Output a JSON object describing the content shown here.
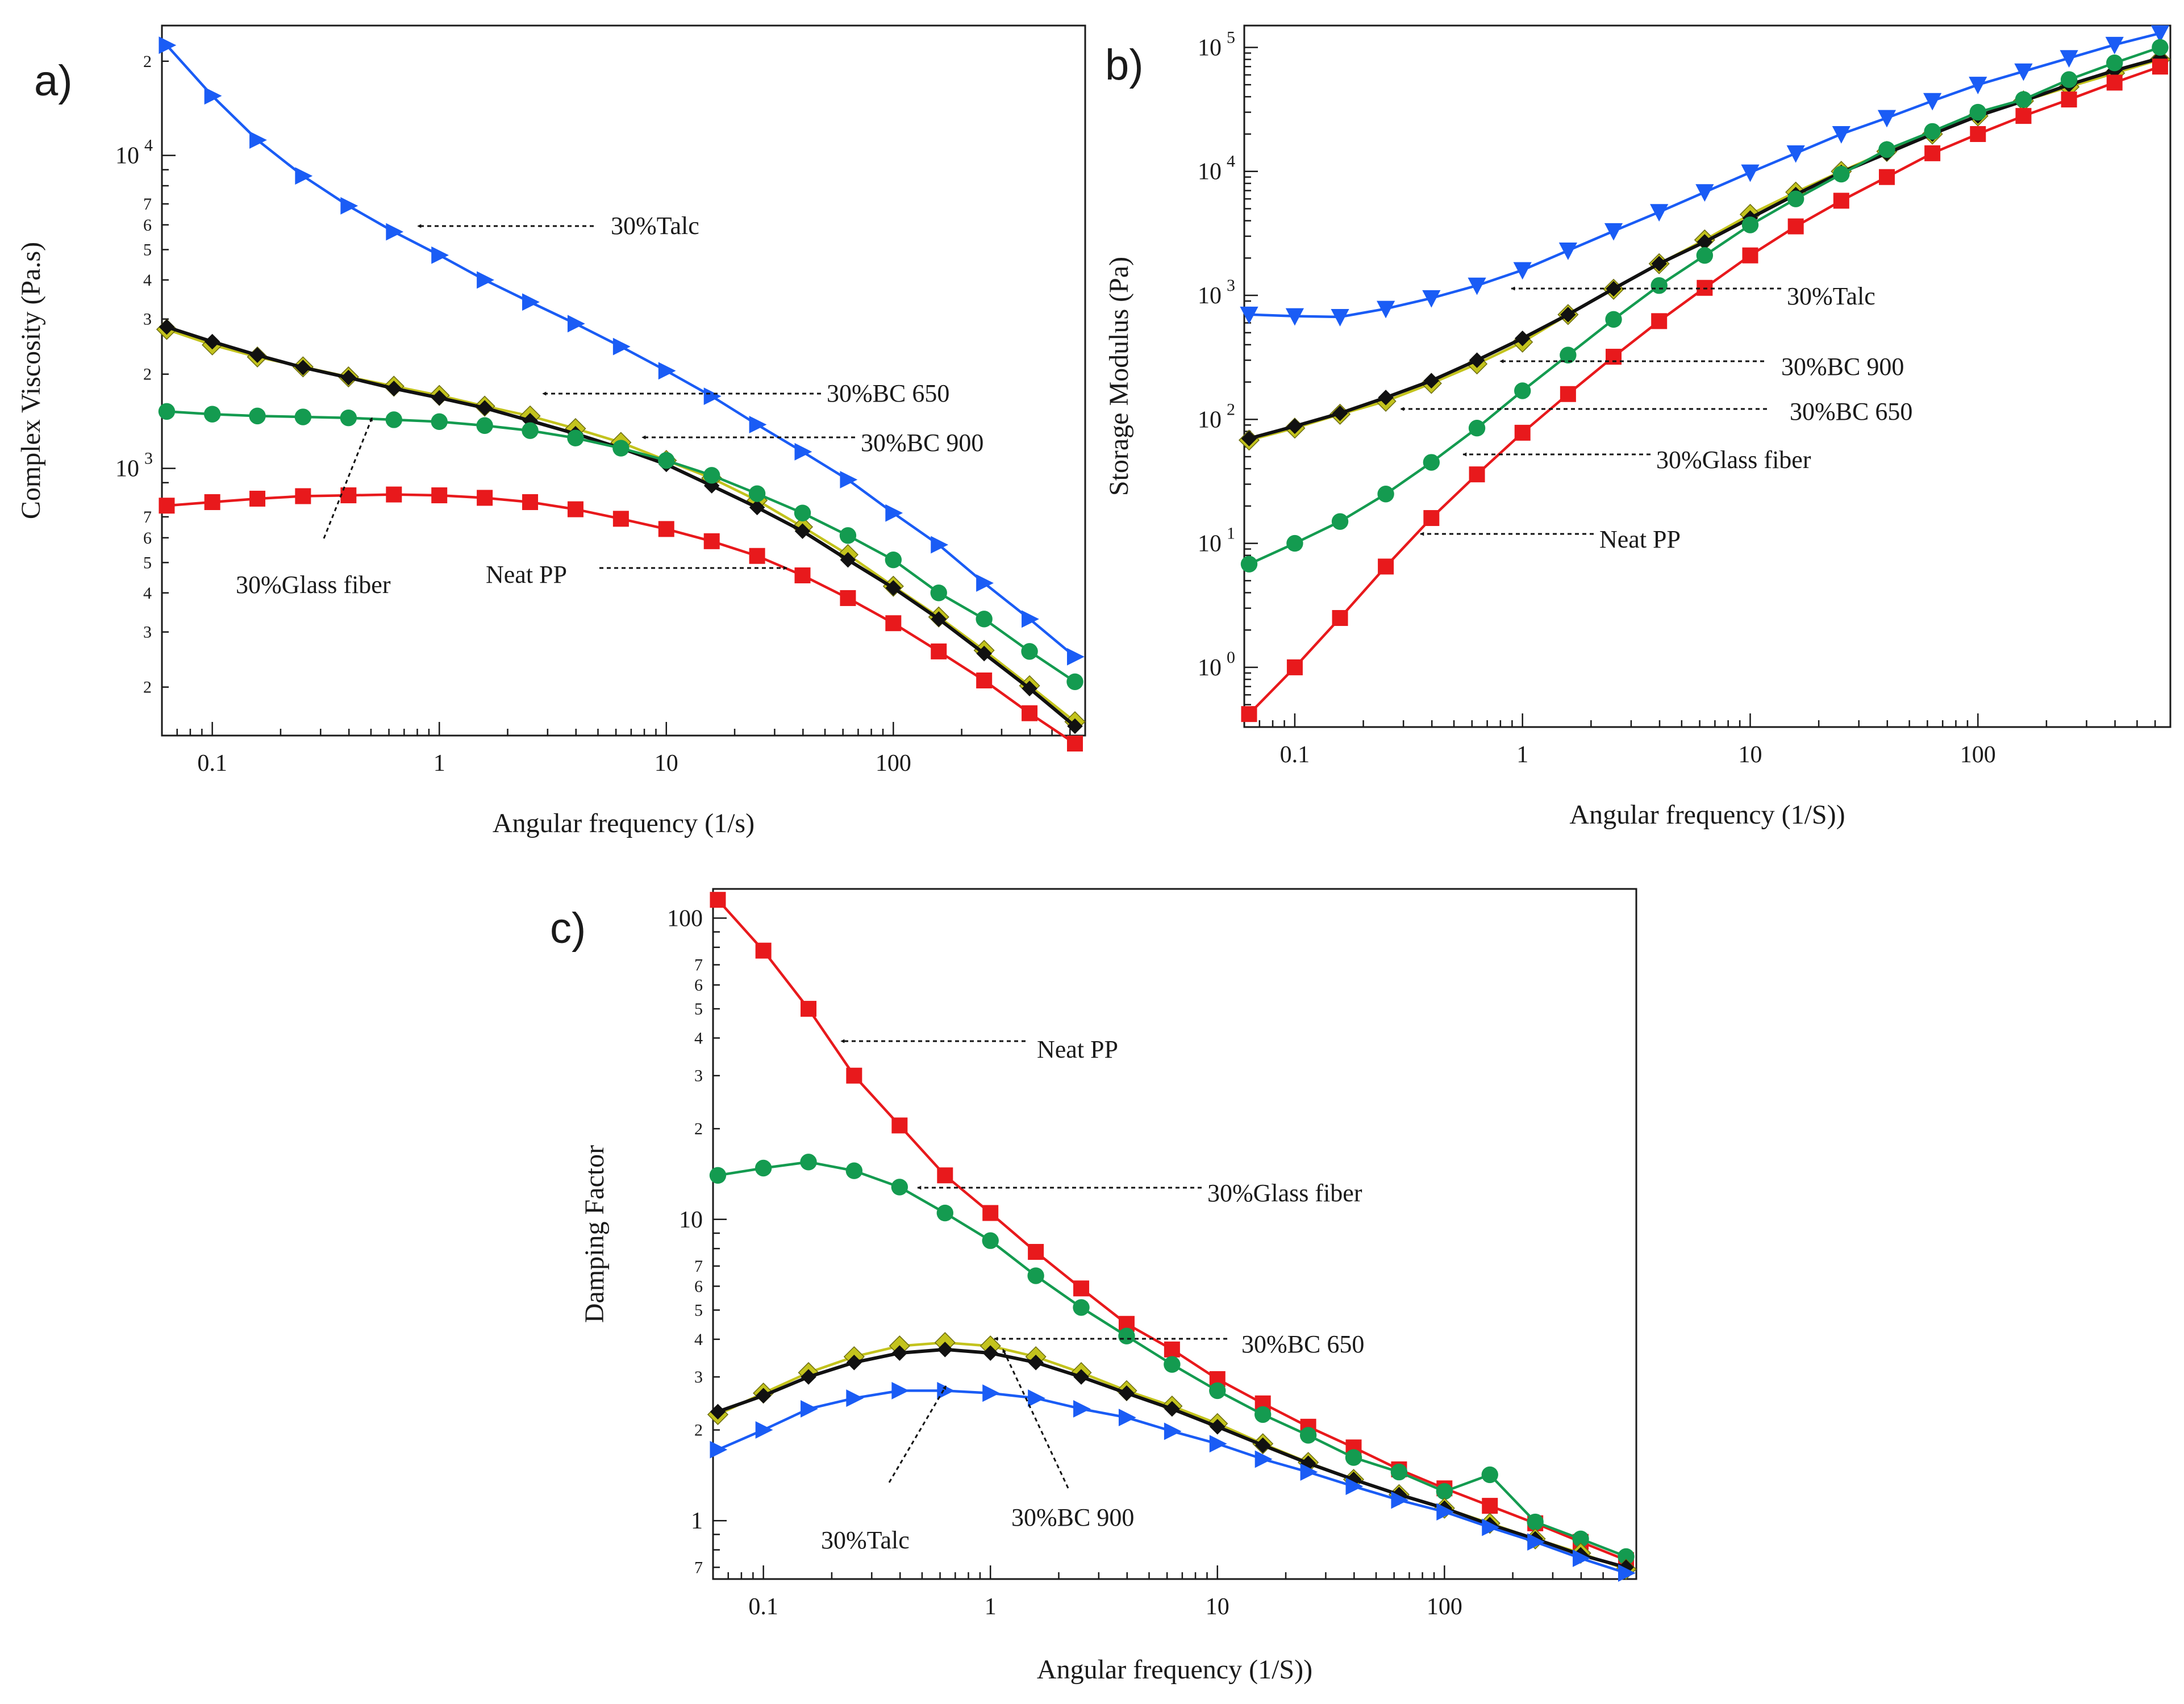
{
  "figure": {
    "panel_labels": [
      "a)",
      "b)",
      "c)"
    ],
    "colors": {
      "neat_pp": "#e8191c",
      "talc": "#1a5cf5",
      "glass": "#149b50",
      "bc650": "#c3c31d",
      "bc900": "#111111",
      "axis": "#1a1a1a"
    }
  },
  "chart_data": [
    {
      "id": "a",
      "type": "line",
      "panel_label": "a)",
      "title": "",
      "xlabel": "Angular frequency (1/s)",
      "ylabel": "Complex Viscosity (Pa.s)",
      "xscale": "log",
      "yscale": "log",
      "xlim": [
        0.06,
        700
      ],
      "ylim": [
        140,
        26000
      ],
      "xticks": [
        {
          "v": 0.1,
          "t": "0.1"
        },
        {
          "v": 1,
          "t": "1"
        },
        {
          "v": 10,
          "t": "10"
        },
        {
          "v": 100,
          "t": "100"
        }
      ],
      "yticks": [
        {
          "v": 200,
          "t": "2"
        },
        {
          "v": 300,
          "t": "3"
        },
        {
          "v": 400,
          "t": "4"
        },
        {
          "v": 500,
          "t": "5"
        },
        {
          "v": 600,
          "t": "6"
        },
        {
          "v": 700,
          "t": "7"
        },
        {
          "v": 1000,
          "t": "10",
          "sup": "3"
        },
        {
          "v": 2000,
          "t": "2"
        },
        {
          "v": 3000,
          "t": "3"
        },
        {
          "v": 4000,
          "t": "4"
        },
        {
          "v": 5000,
          "t": "5"
        },
        {
          "v": 6000,
          "t": "6"
        },
        {
          "v": 7000,
          "t": "7"
        },
        {
          "v": 10000,
          "t": "10",
          "sup": "4"
        },
        {
          "v": 20000,
          "t": "2"
        }
      ],
      "x": [
        0.063,
        0.1,
        0.158,
        0.251,
        0.398,
        0.631,
        1,
        1.585,
        2.512,
        3.981,
        6.31,
        10,
        15.85,
        25.12,
        39.81,
        63.1,
        100,
        158.5,
        251.2,
        398.1,
        631
      ],
      "series": [
        {
          "name": "30%Talc",
          "color": "#1a5cf5",
          "marker": "triangle-right",
          "values": [
            22500,
            15500,
            11200,
            8600,
            6900,
            5700,
            4800,
            4000,
            3400,
            2900,
            2450,
            2050,
            1700,
            1380,
            1130,
            920,
            720,
            570,
            430,
            330,
            250
          ]
        },
        {
          "name": "30%BC 650",
          "color": "#c3c31d",
          "marker": "diamond",
          "values": [
            2780,
            2480,
            2270,
            2110,
            1960,
            1830,
            1710,
            1580,
            1470,
            1340,
            1210,
            1060,
            930,
            790,
            650,
            530,
            420,
            335,
            262,
            202,
            155
          ]
        },
        {
          "name": "30%BC 900",
          "color": "#111111",
          "marker": "diamond",
          "values": [
            2830,
            2540,
            2300,
            2100,
            1950,
            1800,
            1680,
            1560,
            1420,
            1290,
            1160,
            1030,
            880,
            750,
            630,
            510,
            415,
            330,
            256,
            198,
            150
          ]
        },
        {
          "name": "30%Glass fiber",
          "color": "#149b50",
          "marker": "circle",
          "values": [
            1520,
            1490,
            1470,
            1460,
            1450,
            1430,
            1410,
            1370,
            1320,
            1250,
            1160,
            1060,
            950,
            830,
            720,
            610,
            510,
            400,
            330,
            260,
            208
          ]
        },
        {
          "name": "Neat PP",
          "color": "#e8191c",
          "marker": "square",
          "values": [
            760,
            780,
            800,
            815,
            820,
            825,
            820,
            805,
            780,
            740,
            690,
            640,
            585,
            525,
            455,
            385,
            320,
            260,
            210,
            165,
            132
          ]
        }
      ],
      "annotations": [
        {
          "text": "30%Talc"
        },
        {
          "text": "30%BC 650"
        },
        {
          "text": "30%BC 900"
        },
        {
          "text": "30%Glass fiber"
        },
        {
          "text": "Neat PP"
        }
      ]
    },
    {
      "id": "b",
      "type": "line",
      "panel_label": "b)",
      "title": "",
      "xlabel": "Angular frequency (1/S))",
      "ylabel": "Storage Modulus (Pa)",
      "xscale": "log",
      "yscale": "log",
      "xlim": [
        0.06,
        700
      ],
      "ylim": [
        0.33,
        150000
      ],
      "xticks": [
        {
          "v": 0.1,
          "t": "0.1"
        },
        {
          "v": 1,
          "t": "1"
        },
        {
          "v": 10,
          "t": "10"
        },
        {
          "v": 100,
          "t": "100"
        }
      ],
      "yticks": [
        {
          "v": 1,
          "t": "10",
          "sup": "0"
        },
        {
          "v": 10,
          "t": "10",
          "sup": "1"
        },
        {
          "v": 100,
          "t": "10",
          "sup": "2"
        },
        {
          "v": 1000,
          "t": "10",
          "sup": "3"
        },
        {
          "v": 10000,
          "t": "10",
          "sup": "4"
        },
        {
          "v": 100000,
          "t": "10",
          "sup": "5"
        }
      ],
      "x": [
        0.063,
        0.1,
        0.158,
        0.251,
        0.398,
        0.631,
        1,
        1.585,
        2.512,
        3.981,
        6.31,
        10,
        15.85,
        25.12,
        39.81,
        63.1,
        100,
        158.5,
        251.2,
        398.1,
        631
      ],
      "series": [
        {
          "name": "30%Talc",
          "color": "#1a5cf5",
          "marker": "triangle-down",
          "values": [
            700,
            680,
            670,
            780,
            950,
            1200,
            1600,
            2300,
            3300,
            4700,
            6800,
            9800,
            14000,
            20000,
            27000,
            37000,
            50000,
            64000,
            82000,
            105000,
            130000
          ]
        },
        {
          "name": "30%BC 650",
          "color": "#c3c31d",
          "marker": "diamond",
          "values": [
            68,
            85,
            110,
            140,
            195,
            280,
            420,
            700,
            1120,
            1800,
            2800,
            4500,
            6800,
            10000,
            14500,
            20000,
            28000,
            37000,
            48000,
            62000,
            80000
          ]
        },
        {
          "name": "30%BC 900",
          "color": "#111111",
          "marker": "diamond",
          "values": [
            70,
            88,
            112,
            150,
            205,
            300,
            450,
            700,
            1130,
            1800,
            2700,
            4200,
            6500,
            9800,
            14000,
            20000,
            28000,
            37000,
            50000,
            65000,
            82000
          ]
        },
        {
          "name": "30%Glass fiber",
          "color": "#149b50",
          "marker": "circle",
          "values": [
            6.8,
            10,
            15,
            25,
            45,
            85,
            170,
            330,
            640,
            1200,
            2100,
            3700,
            6000,
            9500,
            15000,
            21000,
            30000,
            38000,
            55000,
            75000,
            100000
          ]
        },
        {
          "name": "Neat PP",
          "color": "#e8191c",
          "marker": "square",
          "values": [
            0.42,
            1.0,
            2.5,
            6.5,
            16,
            36,
            78,
            160,
            320,
            620,
            1150,
            2100,
            3600,
            5800,
            9000,
            14000,
            20000,
            28000,
            38000,
            52000,
            70000
          ]
        }
      ],
      "annotations": [
        {
          "text": "30%Talc"
        },
        {
          "text": "30%BC 900"
        },
        {
          "text": "30%BC 650"
        },
        {
          "text": "30%Glass fiber"
        },
        {
          "text": "Neat PP"
        }
      ]
    },
    {
      "id": "c",
      "type": "line",
      "panel_label": "c)",
      "title": "",
      "xlabel": "Angular frequency (1/S))",
      "ylabel": "Damping Factor",
      "xscale": "log",
      "yscale": "log",
      "xlim": [
        0.06,
        700
      ],
      "ylim": [
        0.64,
        125
      ],
      "xticks": [
        {
          "v": 0.1,
          "t": "0.1"
        },
        {
          "v": 1,
          "t": "1"
        },
        {
          "v": 10,
          "t": "10"
        },
        {
          "v": 100,
          "t": "100"
        }
      ],
      "yticks": [
        {
          "v": 0.7,
          "t": "7"
        },
        {
          "v": 1,
          "t": "1"
        },
        {
          "v": 2,
          "t": "2"
        },
        {
          "v": 3,
          "t": "3"
        },
        {
          "v": 4,
          "t": "4"
        },
        {
          "v": 5,
          "t": "5"
        },
        {
          "v": 6,
          "t": "6"
        },
        {
          "v": 7,
          "t": "7"
        },
        {
          "v": 10,
          "t": "10"
        },
        {
          "v": 20,
          "t": "2"
        },
        {
          "v": 30,
          "t": "3"
        },
        {
          "v": 40,
          "t": "4"
        },
        {
          "v": 50,
          "t": "5"
        },
        {
          "v": 60,
          "t": "6"
        },
        {
          "v": 70,
          "t": "7"
        },
        {
          "v": 100,
          "t": "100"
        }
      ],
      "x": [
        0.063,
        0.1,
        0.158,
        0.251,
        0.398,
        0.631,
        1,
        1.585,
        2.512,
        3.981,
        6.31,
        10,
        15.85,
        25.12,
        39.81,
        63.1,
        100,
        158.5,
        251.2,
        398.1,
        631
      ],
      "series": [
        {
          "name": "Neat PP",
          "color": "#e8191c",
          "marker": "square",
          "values": [
            115,
            78,
            50,
            30,
            20.5,
            14,
            10.5,
            7.8,
            5.9,
            4.5,
            3.7,
            2.95,
            2.45,
            2.05,
            1.75,
            1.48,
            1.28,
            1.12,
            0.98,
            0.85,
            0.74
          ]
        },
        {
          "name": "30%Glass fiber",
          "color": "#149b50",
          "marker": "circle",
          "values": [
            14,
            14.8,
            15.5,
            14.5,
            12.8,
            10.5,
            8.5,
            6.5,
            5.1,
            4.1,
            3.3,
            2.7,
            2.25,
            1.92,
            1.62,
            1.45,
            1.25,
            1.42,
            0.99,
            0.87,
            0.76
          ]
        },
        {
          "name": "30%BC 650",
          "color": "#c3c31d",
          "marker": "diamond",
          "values": [
            2.25,
            2.65,
            3.1,
            3.5,
            3.8,
            3.9,
            3.8,
            3.5,
            3.1,
            2.7,
            2.4,
            2.1,
            1.8,
            1.56,
            1.37,
            1.22,
            1.1,
            0.98,
            0.87,
            0.78,
            0.69
          ]
        },
        {
          "name": "30%BC 900",
          "color": "#111111",
          "marker": "diamond",
          "values": [
            2.3,
            2.6,
            3.0,
            3.35,
            3.6,
            3.7,
            3.6,
            3.35,
            3.0,
            2.65,
            2.35,
            2.05,
            1.78,
            1.55,
            1.37,
            1.22,
            1.1,
            0.97,
            0.87,
            0.77,
            0.7
          ]
        },
        {
          "name": "30%Talc",
          "color": "#1a5cf5",
          "marker": "triangle-right",
          "values": [
            1.72,
            2.0,
            2.35,
            2.55,
            2.7,
            2.7,
            2.65,
            2.55,
            2.35,
            2.2,
            1.98,
            1.8,
            1.6,
            1.45,
            1.3,
            1.17,
            1.07,
            0.95,
            0.85,
            0.75,
            0.67
          ]
        }
      ],
      "annotations": [
        {
          "text": "Neat PP"
        },
        {
          "text": "30%Glass fiber"
        },
        {
          "text": "30%BC 650"
        },
        {
          "text": "30%Talc"
        },
        {
          "text": "30%BC 900"
        }
      ]
    }
  ]
}
